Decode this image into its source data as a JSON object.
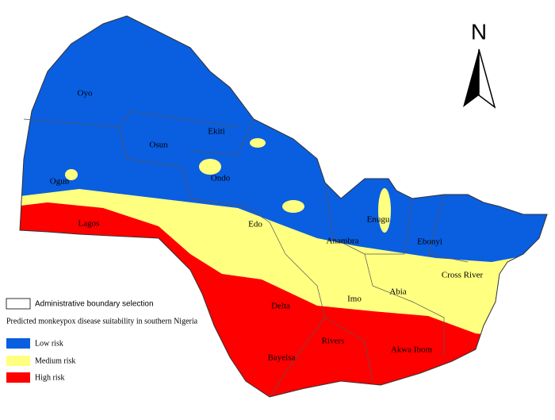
{
  "map": {
    "north": "N",
    "states": [
      "Oyo",
      "Osun",
      "Ekiti",
      "Ondo",
      "Ogun",
      "Lagos",
      "Edo",
      "Anambra",
      "Enugu",
      "Ebonyi",
      "Cross River",
      "Delta",
      "Imo",
      "Abia",
      "Rivers",
      "Bayelsa",
      "Akwa Ibom"
    ],
    "legend": {
      "boundary": "Administrative boundary  selection",
      "title": "Predicted monkeypox disease suitability in southern Nigeria",
      "items": [
        "Low risk",
        "Medium risk",
        "High risk"
      ]
    }
  }
}
